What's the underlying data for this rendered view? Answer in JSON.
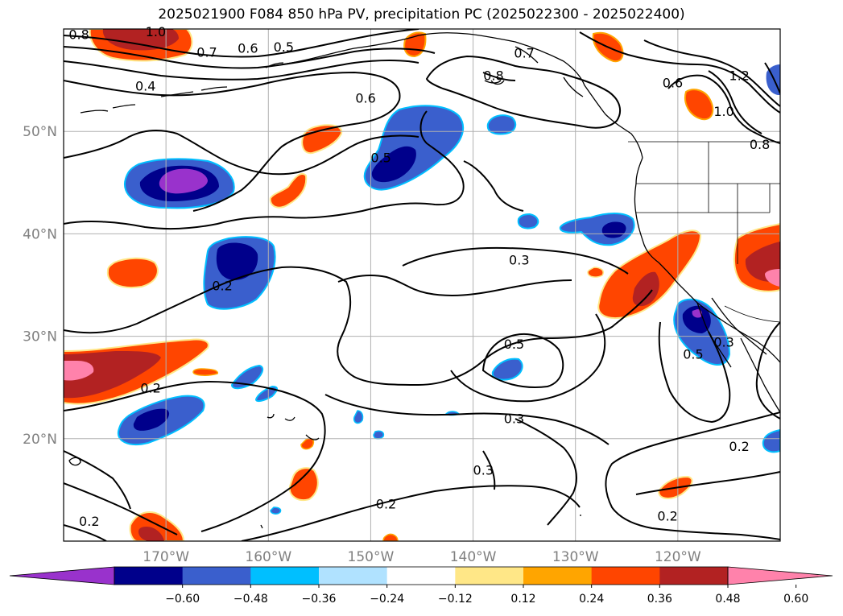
{
  "title": "2025021900 F084 850 hPa PV, precipitation PC (2025022300 - 2025022400)",
  "map": {
    "lat_labels": [
      "50°N",
      "40°N",
      "30°N",
      "20°N"
    ],
    "lon_labels": [
      "170°W",
      "160°W",
      "150°W",
      "140°W",
      "130°W",
      "120°W"
    ],
    "contour_labels": [
      {
        "text": "0.8",
        "lon": -178.5,
        "lat": 59.0
      },
      {
        "text": "1.0",
        "lon": -171.0,
        "lat": 59.3
      },
      {
        "text": "0.7",
        "lon": -166.0,
        "lat": 57.3
      },
      {
        "text": "0.6",
        "lon": -162.0,
        "lat": 57.7
      },
      {
        "text": "0.5",
        "lon": -158.5,
        "lat": 57.8
      },
      {
        "text": "0.4",
        "lon": -172.0,
        "lat": 54.0
      },
      {
        "text": "0.6",
        "lon": -150.5,
        "lat": 52.8
      },
      {
        "text": "0.8",
        "lon": -138.0,
        "lat": 55.0
      },
      {
        "text": "0.7",
        "lon": -135.0,
        "lat": 57.2
      },
      {
        "text": "0.6",
        "lon": -120.5,
        "lat": 54.3
      },
      {
        "text": "1.0",
        "lon": -115.5,
        "lat": 51.5
      },
      {
        "text": "1.2",
        "lon": -114.0,
        "lat": 55.0
      },
      {
        "text": "0.8",
        "lon": -112.0,
        "lat": 48.3
      },
      {
        "text": "0.5",
        "lon": -149.0,
        "lat": 47.0
      },
      {
        "text": "0.3",
        "lon": -135.5,
        "lat": 37.0
      },
      {
        "text": "0.2",
        "lon": -164.5,
        "lat": 34.5
      },
      {
        "text": "0.5",
        "lon": -136.0,
        "lat": 28.8
      },
      {
        "text": "0.5",
        "lon": -118.5,
        "lat": 27.8
      },
      {
        "text": "0.3",
        "lon": -115.5,
        "lat": 29.0
      },
      {
        "text": "0.2",
        "lon": -171.5,
        "lat": 24.5
      },
      {
        "text": "0.3",
        "lon": -136.0,
        "lat": 21.5
      },
      {
        "text": "0.3",
        "lon": -139.0,
        "lat": 16.5
      },
      {
        "text": "0.2",
        "lon": -148.5,
        "lat": 13.2
      },
      {
        "text": "0.2",
        "lon": -114.0,
        "lat": 18.8
      },
      {
        "text": "0.2",
        "lon": -121.0,
        "lat": 12.0
      },
      {
        "text": "0.2",
        "lon": -177.5,
        "lat": 11.5
      }
    ]
  },
  "colorbar": {
    "labels": [
      "−0.60",
      "−0.48",
      "−0.36",
      "−0.24",
      "−0.12",
      "0.12",
      "0.24",
      "0.36",
      "0.48",
      "0.60"
    ],
    "colors": [
      "#9932cc",
      "#00008b",
      "#3a5fcd",
      "#00bfff",
      "#b0e2ff",
      "#ffffff",
      "#ffe787",
      "#ffa500",
      "#ff4500",
      "#b22222",
      "#ff82ab"
    ]
  }
}
